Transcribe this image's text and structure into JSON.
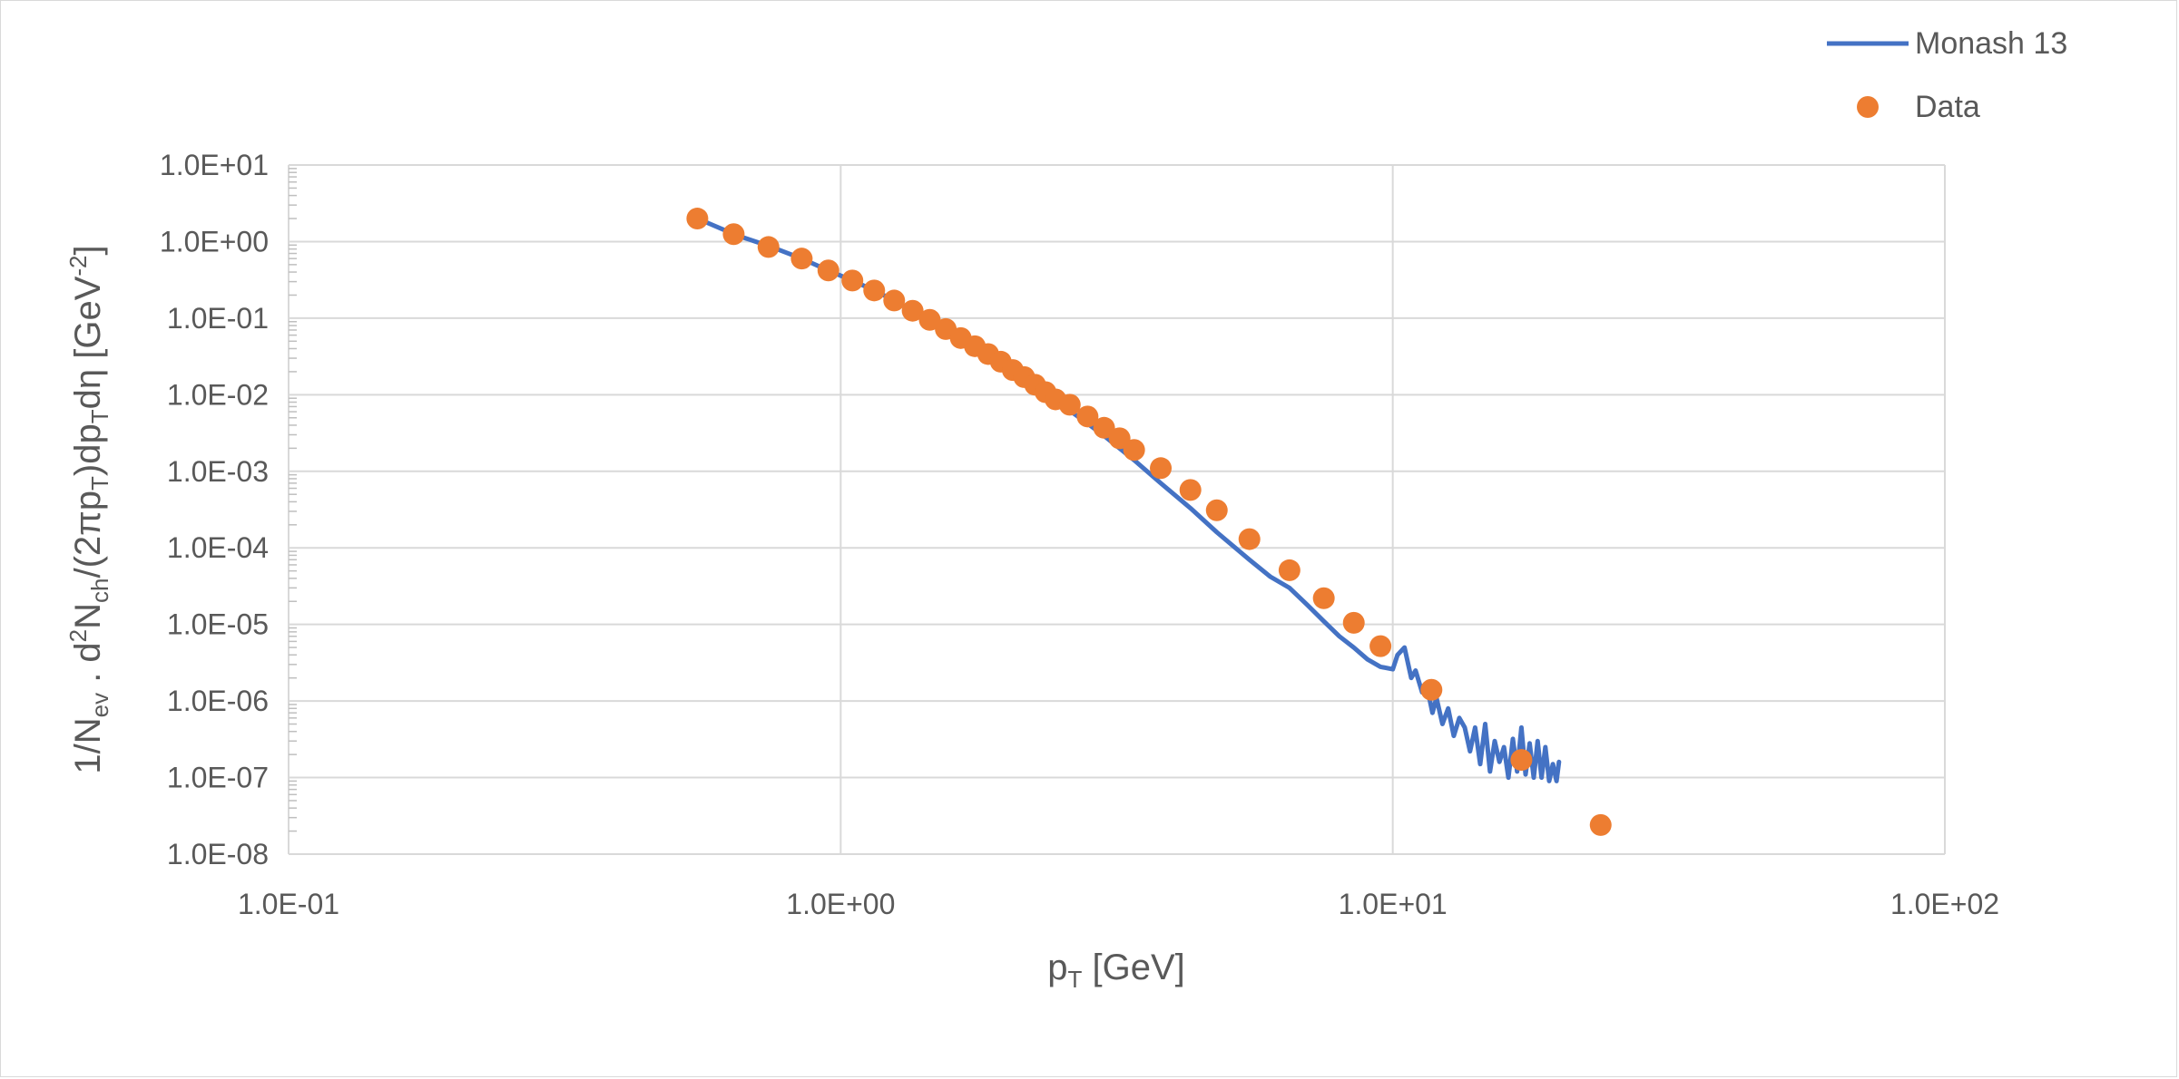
{
  "chart_data": {
    "type": "scatter",
    "xscale": "log",
    "yscale": "log",
    "xlim": [
      0.1,
      100
    ],
    "ylim": [
      1e-08,
      10
    ],
    "x_tick_values": [
      0.1,
      1,
      10,
      100
    ],
    "x_tick_labels": [
      "1.0E-01",
      "1.0E+00",
      "1.0E+01",
      "1.0E+02"
    ],
    "y_tick_values": [
      10,
      1,
      0.1,
      0.01,
      0.001,
      0.0001,
      1e-05,
      1e-06,
      1e-07,
      1e-08
    ],
    "y_tick_labels": [
      "1.0E+01",
      "1.0E+00",
      "1.0E-01",
      "1.0E-02",
      "1.0E-03",
      "1.0E-04",
      "1.0E-05",
      "1.0E-06",
      "1.0E-07",
      "1.0E-08"
    ],
    "xlabel": {
      "main": "p",
      "sub": "T",
      "rest": " [GeV]"
    },
    "ylabel": [
      {
        "t": "1/N"
      },
      {
        "t": "ev",
        "s": "sub"
      },
      {
        "t": " . d"
      },
      {
        "t": "2",
        "s": "sup"
      },
      {
        "t": "N"
      },
      {
        "t": "ch",
        "s": "sub"
      },
      {
        "t": "/(2πp"
      },
      {
        "t": "T",
        "s": "sub"
      },
      {
        "t": ")dp"
      },
      {
        "t": "T",
        "s": "sub"
      },
      {
        "t": "dη  [GeV"
      },
      {
        "t": "-2",
        "s": "sup"
      },
      {
        "t": "]"
      }
    ],
    "grid": true,
    "legend_position": "top-right",
    "series": [
      {
        "name": "Monash 13",
        "kind": "line",
        "color": "#4472C4",
        "x": [
          0.55,
          0.65,
          0.75,
          0.85,
          0.95,
          1.05,
          1.15,
          1.25,
          1.35,
          1.45,
          1.55,
          1.65,
          1.75,
          1.85,
          1.95,
          2.05,
          2.15,
          2.25,
          2.35,
          2.45,
          2.6,
          2.8,
          3.0,
          3.2,
          3.4,
          3.8,
          4.3,
          4.8,
          5.5,
          6.0,
          6.5,
          7.0,
          7.5,
          8.0,
          8.5,
          9.0,
          9.5,
          10.0,
          10.2,
          10.5,
          10.8,
          11.0,
          11.3,
          11.5,
          11.8,
          12.0,
          12.3,
          12.6,
          12.9,
          13.2,
          13.5,
          13.8,
          14.1,
          14.4,
          14.7,
          15.0,
          15.3,
          15.6,
          15.9,
          16.2,
          16.5,
          16.8,
          17.1,
          17.4,
          17.7,
          18.0,
          18.3,
          18.6,
          18.9,
          19.2,
          19.5,
          19.8,
          20.0
        ],
        "y": [
          2.0,
          1.2,
          0.85,
          0.6,
          0.42,
          0.31,
          0.23,
          0.17,
          0.125,
          0.095,
          0.072,
          0.055,
          0.043,
          0.034,
          0.027,
          0.021,
          0.017,
          0.0135,
          0.0108,
          0.0087,
          0.0062,
          0.0042,
          0.0029,
          0.002,
          0.0014,
          0.0007,
          0.00033,
          0.00016,
          7e-05,
          4.2e-05,
          3e-05,
          1.8e-05,
          1.1e-05,
          7e-06,
          5e-06,
          3.5e-06,
          2.8e-06,
          2.6e-06,
          4e-06,
          5e-06,
          2e-06,
          2.5e-06,
          1.3e-06,
          1.7e-06,
          7e-07,
          1.1e-06,
          5e-07,
          8e-07,
          3.5e-07,
          6e-07,
          4.5e-07,
          2.2e-07,
          4.5e-07,
          1.5e-07,
          5e-07,
          1.2e-07,
          3e-07,
          1.6e-07,
          2.5e-07,
          1e-07,
          3.2e-07,
          1.2e-07,
          4.5e-07,
          1.1e-07,
          2.8e-07,
          1e-07,
          3e-07,
          1e-07,
          2.5e-07,
          9e-08,
          1.5e-07,
          9e-08,
          1.6e-07
        ]
      },
      {
        "name": "Data",
        "kind": "marker",
        "color": "#ED7D31",
        "x": [
          0.55,
          0.64,
          0.74,
          0.85,
          0.95,
          1.05,
          1.15,
          1.25,
          1.35,
          1.45,
          1.55,
          1.65,
          1.75,
          1.85,
          1.95,
          2.05,
          2.15,
          2.25,
          2.35,
          2.45,
          2.6,
          2.8,
          3.0,
          3.2,
          3.4,
          3.8,
          4.3,
          4.8,
          5.5,
          6.5,
          7.5,
          8.5,
          9.5,
          11.75,
          17.1,
          23.8
        ],
        "y": [
          2.0,
          1.25,
          0.85,
          0.6,
          0.42,
          0.31,
          0.23,
          0.17,
          0.125,
          0.095,
          0.072,
          0.055,
          0.043,
          0.034,
          0.027,
          0.021,
          0.017,
          0.0135,
          0.0108,
          0.0087,
          0.0074,
          0.0052,
          0.0037,
          0.0027,
          0.0019,
          0.0011,
          0.00057,
          0.00031,
          0.00013,
          5.1e-05,
          2.2e-05,
          1.05e-05,
          5.2e-06,
          1.4e-06,
          1.7e-07,
          2.4e-08
        ]
      }
    ]
  }
}
